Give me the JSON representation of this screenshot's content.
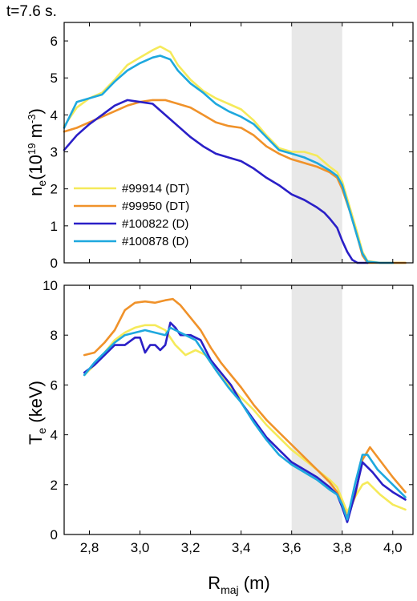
{
  "time_label": "t=7.6 s.",
  "chart_data": [
    {
      "type": "line",
      "panel": "top",
      "ylabel_main": "n",
      "ylabel_sub": "e",
      "ylabel_unit_a": "(10",
      "ylabel_unit_sup": "19",
      "ylabel_unit_b": " m",
      "ylabel_unit_sup2": "-3",
      "ylabel_unit_c": ")",
      "xlim": [
        2.7,
        4.08
      ],
      "ylim": [
        0,
        6.5
      ],
      "yticks": [
        "0",
        "1",
        "2",
        "3",
        "4",
        "5",
        "6"
      ],
      "ytick_values": [
        0,
        1,
        2,
        3,
        4,
        5,
        6
      ],
      "shaded_region": [
        3.6,
        3.8
      ],
      "legend_position": "lower-left",
      "series": [
        {
          "name": "#99914  (DT)",
          "color": "#f5ea5a",
          "x": [
            2.7,
            2.75,
            2.8,
            2.85,
            2.9,
            2.95,
            3.0,
            3.05,
            3.08,
            3.12,
            3.15,
            3.2,
            3.25,
            3.3,
            3.35,
            3.4,
            3.45,
            3.5,
            3.55,
            3.6,
            3.65,
            3.7,
            3.75,
            3.78,
            3.8,
            3.83,
            3.86,
            3.88,
            3.9,
            3.95,
            4.0,
            4.05
          ],
          "y": [
            3.7,
            4.2,
            4.45,
            4.6,
            4.95,
            5.35,
            5.55,
            5.75,
            5.85,
            5.7,
            5.35,
            4.95,
            4.65,
            4.45,
            4.3,
            4.15,
            3.85,
            3.45,
            3.1,
            3.0,
            3.0,
            2.9,
            2.6,
            2.45,
            2.2,
            1.5,
            0.8,
            0.3,
            0.05,
            0.0,
            0.0,
            0.0
          ]
        },
        {
          "name": "#99950  (DT)",
          "color": "#f0922a",
          "x": [
            2.7,
            2.75,
            2.8,
            2.85,
            2.9,
            2.95,
            3.0,
            3.05,
            3.1,
            3.15,
            3.2,
            3.25,
            3.3,
            3.35,
            3.4,
            3.45,
            3.5,
            3.55,
            3.6,
            3.65,
            3.7,
            3.75,
            3.78,
            3.8,
            3.83,
            3.86,
            3.88,
            3.9,
            3.95,
            4.0,
            4.05
          ],
          "y": [
            3.55,
            3.65,
            3.8,
            3.95,
            4.1,
            4.25,
            4.35,
            4.4,
            4.4,
            4.3,
            4.2,
            4.0,
            3.8,
            3.7,
            3.65,
            3.45,
            3.15,
            2.95,
            2.8,
            2.7,
            2.6,
            2.45,
            2.3,
            2.0,
            1.4,
            0.7,
            0.2,
            0.0,
            0.0,
            0.0,
            0.0
          ]
        },
        {
          "name": "#100822  (D)",
          "color": "#2a1fc7",
          "x": [
            2.7,
            2.75,
            2.8,
            2.85,
            2.9,
            2.95,
            3.0,
            3.05,
            3.1,
            3.15,
            3.2,
            3.25,
            3.3,
            3.35,
            3.4,
            3.45,
            3.5,
            3.55,
            3.6,
            3.65,
            3.7,
            3.73,
            3.75,
            3.78,
            3.8,
            3.82,
            3.84,
            3.86,
            3.88,
            3.9
          ],
          "y": [
            3.05,
            3.45,
            3.75,
            4.0,
            4.25,
            4.4,
            4.35,
            4.3,
            4.0,
            3.7,
            3.4,
            3.15,
            2.95,
            2.85,
            2.75,
            2.55,
            2.3,
            2.1,
            1.85,
            1.7,
            1.5,
            1.35,
            1.2,
            0.95,
            0.6,
            0.3,
            0.08,
            0.0,
            0.0,
            0.0
          ]
        },
        {
          "name": "#100878  (D)",
          "color": "#1ea8de",
          "x": [
            2.7,
            2.75,
            2.8,
            2.85,
            2.9,
            2.95,
            3.0,
            3.05,
            3.08,
            3.12,
            3.15,
            3.2,
            3.25,
            3.3,
            3.35,
            3.4,
            3.45,
            3.5,
            3.55,
            3.6,
            3.65,
            3.7,
            3.75,
            3.78,
            3.8,
            3.83,
            3.86,
            3.88,
            3.9,
            3.95,
            4.0
          ],
          "y": [
            3.65,
            4.35,
            4.45,
            4.55,
            4.9,
            5.2,
            5.4,
            5.55,
            5.6,
            5.5,
            5.2,
            4.85,
            4.6,
            4.3,
            4.1,
            3.95,
            3.75,
            3.4,
            3.05,
            2.95,
            2.85,
            2.7,
            2.5,
            2.35,
            2.1,
            1.4,
            0.7,
            0.25,
            0.03,
            0.0,
            0.0
          ]
        }
      ]
    },
    {
      "type": "line",
      "panel": "bottom",
      "ylabel_main": "T",
      "ylabel_sub": "e",
      "ylabel_unit": " (keV)",
      "xlabel_main": "R",
      "xlabel_sub": "maj",
      "xlabel_unit": " (m)",
      "xlim": [
        2.7,
        4.08
      ],
      "ylim": [
        0,
        10
      ],
      "yticks": [
        "0",
        "2",
        "4",
        "6",
        "8",
        "10"
      ],
      "ytick_values": [
        0,
        2,
        4,
        6,
        8,
        10
      ],
      "xticks": [
        "2,8",
        "3,0",
        "3,2",
        "3,4",
        "3,6",
        "3,8",
        "4,0"
      ],
      "xtick_values": [
        2.8,
        3.0,
        3.2,
        3.4,
        3.6,
        3.8,
        4.0
      ],
      "shaded_region": [
        3.6,
        3.8
      ],
      "series": [
        {
          "name": "#99914  (DT)",
          "color": "#f5ea5a",
          "x": [
            2.78,
            2.82,
            2.86,
            2.9,
            2.94,
            2.98,
            3.02,
            3.06,
            3.1,
            3.14,
            3.18,
            3.22,
            3.26,
            3.3,
            3.35,
            3.4,
            3.45,
            3.5,
            3.55,
            3.6,
            3.65,
            3.7,
            3.75,
            3.78,
            3.8,
            3.82,
            3.85,
            3.88,
            3.9,
            3.95,
            4.0,
            4.05
          ],
          "y": [
            6.4,
            6.8,
            7.3,
            7.8,
            8.1,
            8.3,
            8.4,
            8.4,
            8.2,
            7.6,
            7.2,
            7.4,
            7.2,
            6.6,
            6.0,
            5.5,
            5.0,
            4.4,
            3.9,
            3.4,
            3.0,
            2.6,
            2.2,
            1.9,
            1.4,
            0.9,
            1.5,
            2.0,
            2.1,
            1.6,
            1.2,
            1.0
          ]
        },
        {
          "name": "#99950  (DT)",
          "color": "#f0922a",
          "x": [
            2.78,
            2.82,
            2.86,
            2.9,
            2.94,
            2.98,
            3.02,
            3.06,
            3.1,
            3.13,
            3.16,
            3.2,
            3.24,
            3.28,
            3.32,
            3.36,
            3.4,
            3.45,
            3.5,
            3.55,
            3.6,
            3.65,
            3.7,
            3.75,
            3.78,
            3.8,
            3.82,
            3.85,
            3.88,
            3.91,
            3.94,
            4.0,
            4.05
          ],
          "y": [
            7.2,
            7.3,
            7.7,
            8.2,
            9.0,
            9.3,
            9.35,
            9.3,
            9.4,
            9.45,
            9.2,
            8.7,
            8.2,
            7.5,
            6.9,
            6.4,
            5.9,
            5.2,
            4.6,
            4.1,
            3.6,
            3.1,
            2.6,
            2.1,
            1.7,
            1.2,
            0.7,
            1.5,
            3.0,
            3.5,
            3.1,
            2.3,
            1.7
          ]
        },
        {
          "name": "#100822  (D)",
          "color": "#2a1fc7",
          "x": [
            2.78,
            2.82,
            2.86,
            2.9,
            2.94,
            2.98,
            3.0,
            3.02,
            3.04,
            3.06,
            3.08,
            3.1,
            3.12,
            3.14,
            3.16,
            3.2,
            3.24,
            3.28,
            3.32,
            3.36,
            3.4,
            3.45,
            3.5,
            3.55,
            3.6,
            3.65,
            3.7,
            3.75,
            3.78,
            3.8,
            3.82,
            3.85,
            3.88,
            3.92,
            3.96,
            4.0,
            4.05
          ],
          "y": [
            6.5,
            6.8,
            7.2,
            7.6,
            7.6,
            7.9,
            7.9,
            7.3,
            7.6,
            7.6,
            7.4,
            7.6,
            8.5,
            8.3,
            8.0,
            8.0,
            7.8,
            7.0,
            6.5,
            6.0,
            5.3,
            4.6,
            3.9,
            3.4,
            2.9,
            2.6,
            2.3,
            1.9,
            1.6,
            1.1,
            0.5,
            1.6,
            2.9,
            2.5,
            2.0,
            1.7,
            1.4
          ]
        },
        {
          "name": "#100878  (D)",
          "color": "#1ea8de",
          "x": [
            2.78,
            2.82,
            2.86,
            2.9,
            2.94,
            2.98,
            3.02,
            3.06,
            3.1,
            3.12,
            3.14,
            3.18,
            3.22,
            3.26,
            3.3,
            3.35,
            3.4,
            3.45,
            3.5,
            3.55,
            3.6,
            3.65,
            3.7,
            3.75,
            3.78,
            3.8,
            3.82,
            3.85,
            3.88,
            3.9,
            3.94,
            4.0,
            4.05
          ],
          "y": [
            6.4,
            6.9,
            7.3,
            7.7,
            8.0,
            8.1,
            8.2,
            8.1,
            8.0,
            8.3,
            8.2,
            8.0,
            7.8,
            7.2,
            6.6,
            5.9,
            5.3,
            4.5,
            3.8,
            3.2,
            2.8,
            2.5,
            2.2,
            1.8,
            1.6,
            1.2,
            0.6,
            2.0,
            3.2,
            3.2,
            2.6,
            2.0,
            1.5
          ]
        }
      ]
    }
  ]
}
